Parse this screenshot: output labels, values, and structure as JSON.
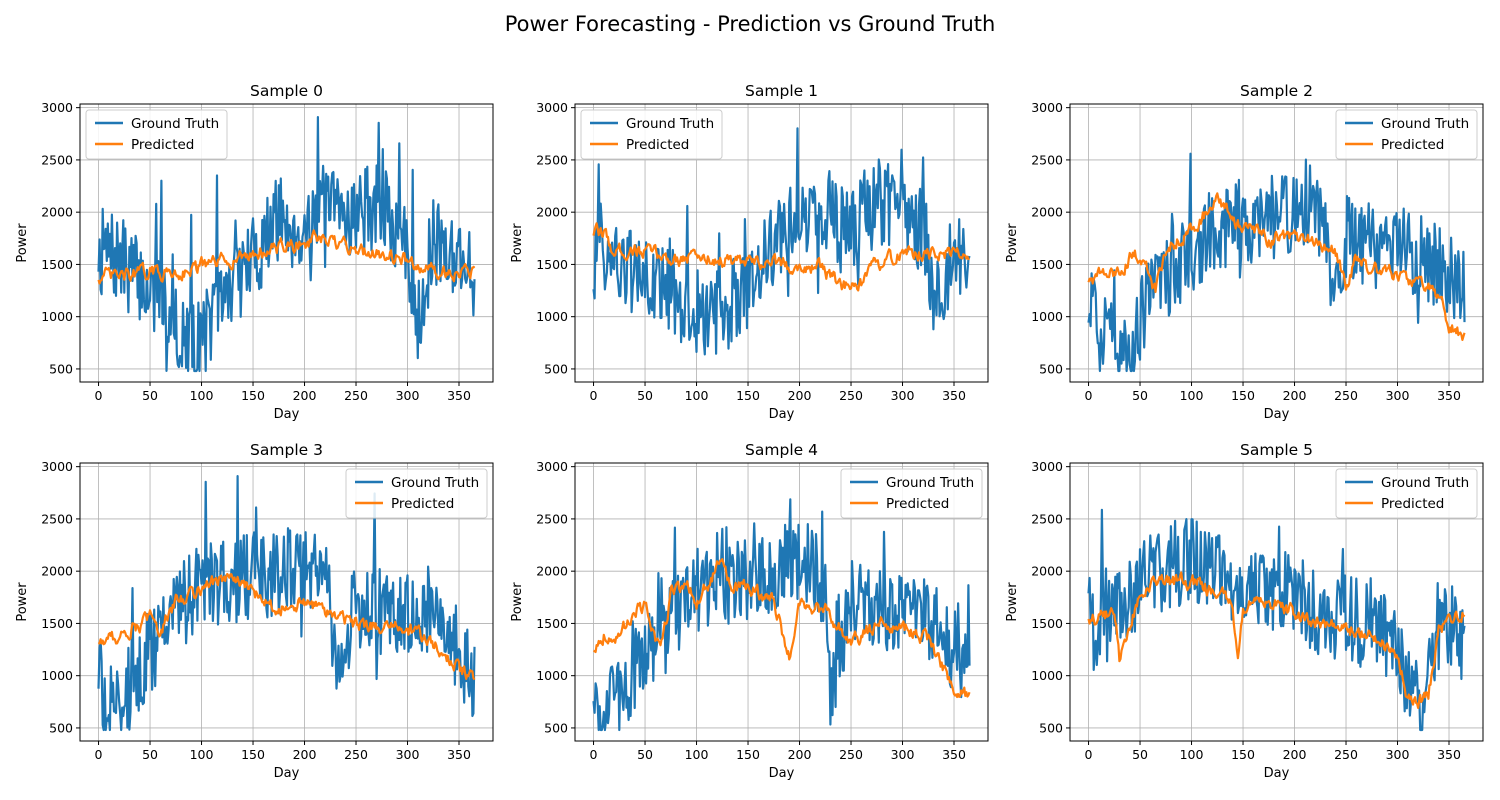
{
  "figure": {
    "title": "Power Forecasting - Prediction vs Ground Truth"
  },
  "colors": {
    "ground_truth": "#1f77b4",
    "predicted": "#ff7f0e",
    "grid": "#b0b0b0",
    "axes": "#000000"
  },
  "chart_data": [
    {
      "type": "line",
      "title": "Sample 0",
      "xlabel": "Day",
      "ylabel": "Power",
      "xlim": [
        -18,
        383
      ],
      "ylim": [
        375,
        3035
      ],
      "xticks": [
        0,
        50,
        100,
        150,
        200,
        250,
        300,
        350
      ],
      "yticks": [
        500,
        1000,
        1500,
        2000,
        2500,
        3000
      ],
      "grid": true,
      "legend_position": "upper-left",
      "series": [
        {
          "name": "Ground Truth",
          "color": "#1f77b4",
          "x": [
            0,
            25,
            50,
            75,
            80,
            100,
            125,
            150,
            175,
            200,
            210,
            225,
            250,
            275,
            300,
            310,
            325,
            350,
            365
          ],
          "y": [
            1650,
            1500,
            1250,
            1050,
            650,
            800,
            1250,
            1550,
            1950,
            1800,
            2050,
            2000,
            2000,
            2050,
            1600,
            1000,
            1700,
            1600,
            1400
          ]
        },
        {
          "name": "Predicted",
          "color": "#ff7f0e",
          "x": [
            0,
            25,
            50,
            75,
            100,
            125,
            150,
            175,
            200,
            210,
            225,
            250,
            275,
            300,
            325,
            350,
            365
          ],
          "y": [
            1380,
            1390,
            1430,
            1420,
            1480,
            1540,
            1600,
            1660,
            1700,
            1740,
            1700,
            1650,
            1600,
            1540,
            1430,
            1440,
            1440
          ]
        }
      ]
    },
    {
      "type": "line",
      "title": "Sample 1",
      "xlabel": "Day",
      "ylabel": "Power",
      "xlim": [
        -18,
        383
      ],
      "ylim": [
        375,
        3035
      ],
      "xticks": [
        0,
        50,
        100,
        150,
        200,
        250,
        300,
        350
      ],
      "yticks": [
        500,
        1000,
        1500,
        2000,
        2500,
        3000
      ],
      "grid": true,
      "legend_position": "upper-left",
      "series": [
        {
          "name": "Ground Truth",
          "color": "#1f77b4",
          "x": [
            0,
            5,
            10,
            25,
            50,
            75,
            100,
            125,
            150,
            175,
            200,
            225,
            250,
            275,
            300,
            325,
            330,
            350,
            365
          ],
          "y": [
            1450,
            2050,
            1600,
            1500,
            1350,
            1250,
            900,
            1050,
            1300,
            1700,
            1900,
            2000,
            1850,
            2100,
            2050,
            1700,
            1000,
            1600,
            1500
          ]
        },
        {
          "name": "Predicted",
          "color": "#ff7f0e",
          "x": [
            0,
            10,
            20,
            40,
            60,
            75,
            100,
            125,
            150,
            175,
            200,
            220,
            235,
            250,
            260,
            275,
            300,
            325,
            350,
            365
          ],
          "y": [
            1800,
            1800,
            1620,
            1640,
            1600,
            1550,
            1580,
            1540,
            1500,
            1520,
            1480,
            1470,
            1350,
            1250,
            1300,
            1500,
            1600,
            1600,
            1600,
            1620
          ]
        }
      ]
    },
    {
      "type": "line",
      "title": "Sample 2",
      "xlabel": "Day",
      "ylabel": "Power",
      "xlim": [
        -18,
        383
      ],
      "ylim": [
        375,
        3035
      ],
      "xticks": [
        0,
        50,
        100,
        150,
        200,
        250,
        300,
        350
      ],
      "yticks": [
        500,
        1000,
        1500,
        2000,
        2500,
        3000
      ],
      "grid": true,
      "legend_position": "upper-right",
      "series": [
        {
          "name": "Ground Truth",
          "color": "#1f77b4",
          "x": [
            0,
            10,
            25,
            40,
            50,
            75,
            100,
            125,
            150,
            175,
            200,
            210,
            225,
            240,
            250,
            275,
            300,
            325,
            340,
            350,
            365
          ],
          "y": [
            1100,
            800,
            700,
            650,
            1000,
            1400,
            1650,
            1850,
            1900,
            1950,
            2000,
            2100,
            1950,
            1300,
            1750,
            1700,
            1650,
            1550,
            1500,
            1400,
            1300
          ]
        },
        {
          "name": "Predicted",
          "color": "#ff7f0e",
          "x": [
            0,
            10,
            25,
            40,
            50,
            65,
            75,
            100,
            125,
            150,
            175,
            200,
            225,
            240,
            250,
            260,
            275,
            300,
            325,
            340,
            350,
            365
          ],
          "y": [
            1350,
            1400,
            1400,
            1550,
            1600,
            1250,
            1650,
            1850,
            2100,
            1850,
            1750,
            1750,
            1700,
            1600,
            1300,
            1550,
            1450,
            1400,
            1300,
            1200,
            900,
            820
          ]
        }
      ]
    },
    {
      "type": "line",
      "title": "Sample 3",
      "xlabel": "Day",
      "ylabel": "Power",
      "xlim": [
        -18,
        383
      ],
      "ylim": [
        375,
        3035
      ],
      "xticks": [
        0,
        50,
        100,
        150,
        200,
        250,
        300,
        350
      ],
      "yticks": [
        500,
        1000,
        1500,
        2000,
        2500,
        3000
      ],
      "grid": true,
      "legend_position": "upper-right",
      "series": [
        {
          "name": "Ground Truth",
          "color": "#1f77b4",
          "x": [
            0,
            10,
            25,
            50,
            75,
            100,
            125,
            150,
            175,
            200,
            225,
            230,
            250,
            275,
            300,
            325,
            350,
            365
          ],
          "y": [
            1000,
            650,
            800,
            1250,
            1600,
            1850,
            1900,
            1950,
            2000,
            2100,
            1800,
            900,
            1650,
            1600,
            1550,
            1500,
            1250,
            900
          ]
        },
        {
          "name": "Predicted",
          "color": "#ff7f0e",
          "x": [
            0,
            25,
            50,
            60,
            75,
            100,
            125,
            150,
            175,
            200,
            225,
            250,
            275,
            300,
            325,
            350,
            365
          ],
          "y": [
            1320,
            1400,
            1550,
            1450,
            1700,
            1850,
            1950,
            1800,
            1650,
            1700,
            1600,
            1500,
            1450,
            1450,
            1300,
            1050,
            980
          ]
        }
      ]
    },
    {
      "type": "line",
      "title": "Sample 4",
      "xlabel": "Day",
      "ylabel": "Power",
      "xlim": [
        -18,
        383
      ],
      "ylim": [
        375,
        3035
      ],
      "xticks": [
        0,
        50,
        100,
        150,
        200,
        250,
        300,
        350
      ],
      "yticks": [
        500,
        1000,
        1500,
        2000,
        2500,
        3000
      ],
      "grid": true,
      "legend_position": "upper-right",
      "series": [
        {
          "name": "Ground Truth",
          "color": "#1f77b4",
          "x": [
            0,
            10,
            25,
            50,
            75,
            100,
            125,
            150,
            175,
            200,
            225,
            230,
            250,
            275,
            300,
            325,
            350,
            365
          ],
          "y": [
            850,
            650,
            750,
            1200,
            1500,
            1800,
            1750,
            1950,
            2000,
            2100,
            1900,
            900,
            1750,
            1600,
            1550,
            1500,
            1250,
            1150
          ]
        },
        {
          "name": "Predicted",
          "color": "#ff7f0e",
          "x": [
            0,
            10,
            25,
            40,
            50,
            65,
            75,
            90,
            100,
            125,
            135,
            150,
            175,
            190,
            200,
            225,
            250,
            275,
            300,
            325,
            340,
            350,
            365
          ],
          "y": [
            1250,
            1400,
            1350,
            1650,
            1650,
            1200,
            1800,
            1900,
            1700,
            2100,
            1800,
            1850,
            1700,
            1200,
            1650,
            1650,
            1300,
            1500,
            1450,
            1350,
            1050,
            850,
            780
          ]
        }
      ]
    },
    {
      "type": "line",
      "title": "Sample 5",
      "xlabel": "Day",
      "ylabel": "Power",
      "xlim": [
        -18,
        383
      ],
      "ylim": [
        375,
        3035
      ],
      "xticks": [
        0,
        50,
        100,
        150,
        200,
        250,
        300,
        350
      ],
      "yticks": [
        500,
        1000,
        1500,
        2000,
        2500,
        3000
      ],
      "grid": true,
      "legend_position": "upper-right",
      "series": [
        {
          "name": "Ground Truth",
          "color": "#1f77b4",
          "x": [
            0,
            5,
            25,
            50,
            75,
            100,
            125,
            150,
            175,
            200,
            225,
            250,
            275,
            300,
            310,
            325,
            340,
            350,
            365
          ],
          "y": [
            1850,
            1450,
            1600,
            1900,
            2050,
            2100,
            2050,
            1850,
            1800,
            1800,
            1600,
            1550,
            1450,
            1300,
            900,
            600,
            1450,
            1500,
            1300
          ]
        },
        {
          "name": "Predicted",
          "color": "#ff7f0e",
          "x": [
            0,
            10,
            25,
            30,
            50,
            75,
            100,
            125,
            140,
            145,
            150,
            175,
            200,
            225,
            250,
            275,
            300,
            310,
            320,
            330,
            340,
            350,
            365
          ],
          "y": [
            1550,
            1550,
            1600,
            1150,
            1800,
            1900,
            1900,
            1800,
            1700,
            1100,
            1650,
            1700,
            1600,
            1500,
            1450,
            1400,
            1200,
            800,
            760,
            800,
            1450,
            1500,
            1600
          ]
        }
      ]
    }
  ]
}
